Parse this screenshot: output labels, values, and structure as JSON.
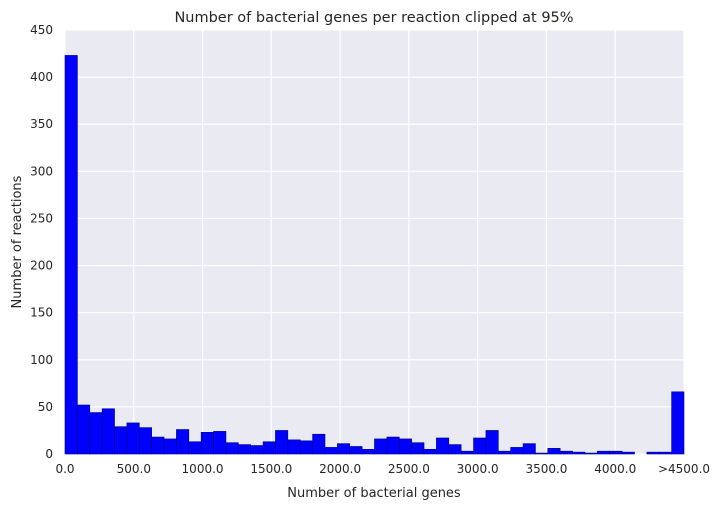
{
  "chart_data": {
    "type": "bar",
    "title": "Number of bacterial genes per reaction clipped at 95%",
    "xlabel": "Number of bacterial genes",
    "ylabel": "Number of reactions",
    "xlim": [
      0,
      4500
    ],
    "ylim": [
      0,
      450
    ],
    "bin_width": 90,
    "x_ticks": [
      0,
      500,
      1000,
      1500,
      2000,
      2500,
      3000,
      3500,
      4000,
      4500
    ],
    "x_tick_labels": [
      "0.0",
      "500.0",
      "1000.0",
      "1500.0",
      "2000.0",
      "2500.0",
      "3000.0",
      "3500.0",
      "4000.0",
      ">4500.0"
    ],
    "y_ticks": [
      0,
      50,
      100,
      150,
      200,
      250,
      300,
      350,
      400,
      450
    ],
    "y_tick_labels": [
      "0",
      "50",
      "100",
      "150",
      "200",
      "250",
      "300",
      "350",
      "400",
      "450"
    ],
    "values": [
      423,
      52,
      44,
      48,
      29,
      33,
      28,
      18,
      16,
      26,
      13,
      23,
      24,
      12,
      10,
      9,
      13,
      25,
      15,
      14,
      21,
      7,
      11,
      8,
      5,
      16,
      18,
      16,
      12,
      5,
      17,
      10,
      3,
      17,
      25,
      3,
      7,
      11,
      1,
      6,
      3,
      2,
      1,
      3,
      3,
      2,
      0,
      2,
      2,
      66
    ],
    "bar_color": "#0000ff",
    "bar_edge_color": "#000080",
    "plot_background": "#eaeaf2",
    "grid": true,
    "grid_color": "#ffffff"
  }
}
